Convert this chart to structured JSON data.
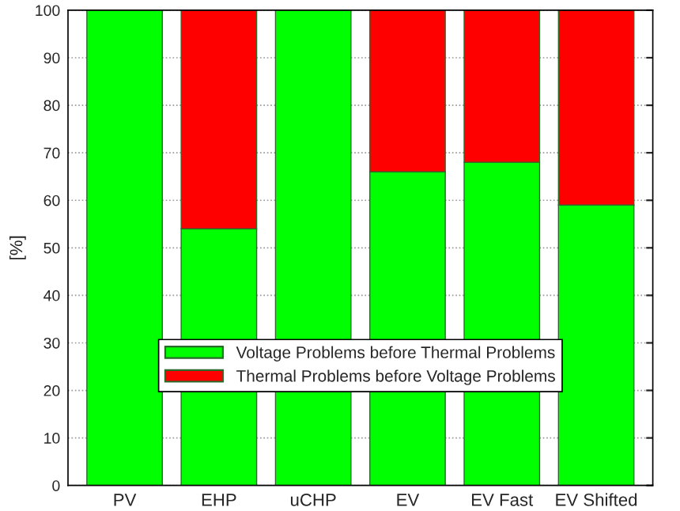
{
  "chart_data": {
    "type": "bar",
    "stacked": true,
    "ylabel": "[%]",
    "categories": [
      "PV",
      "EHP",
      "uCHP",
      "EV",
      "EV Fast",
      "EV Shifted"
    ],
    "series": [
      {
        "name": "Voltage Problems before Thermal Problems",
        "color": "#00ff00",
        "values": [
          100,
          54,
          100,
          66,
          68,
          59
        ]
      },
      {
        "name": "Thermal Problems before Voltage Problems",
        "color": "#ff0000",
        "values": [
          null,
          46,
          null,
          34,
          32,
          41
        ]
      }
    ],
    "ylim": [
      0,
      100
    ],
    "yticks": [
      0,
      10,
      20,
      30,
      40,
      50,
      60,
      70,
      80,
      90,
      100
    ],
    "grid": "y",
    "legend": "bottom"
  }
}
